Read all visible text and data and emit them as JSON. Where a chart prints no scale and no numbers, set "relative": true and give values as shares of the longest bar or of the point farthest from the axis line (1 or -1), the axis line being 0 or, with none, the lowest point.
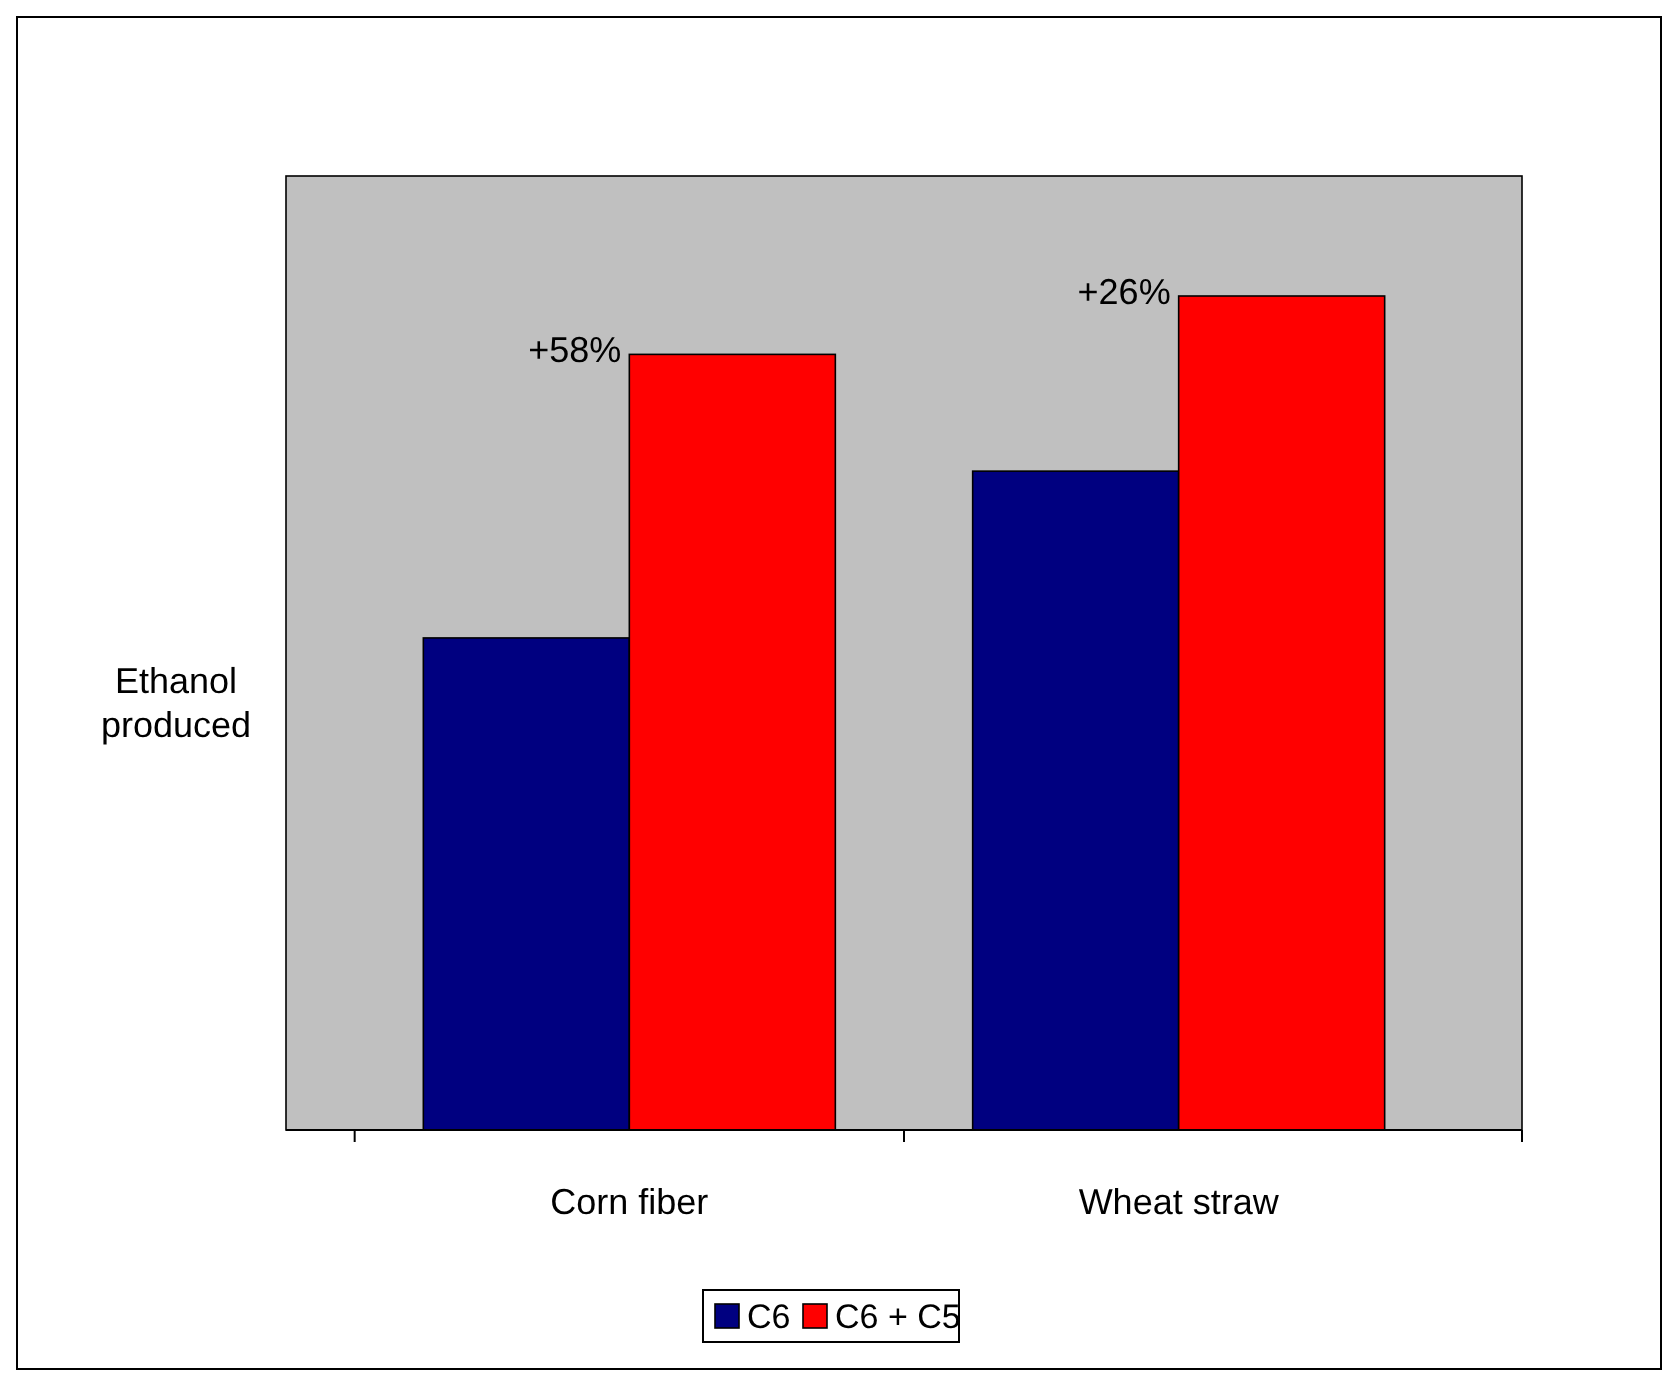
{
  "chart_data": {
    "type": "bar",
    "relative": true,
    "ylabel": "Ethanol produced",
    "categories": [
      "Corn fiber",
      "Wheat straw"
    ],
    "series": [
      {
        "name": "C6",
        "color": "#000080",
        "values": [
          0.59,
          0.79
        ]
      },
      {
        "name": "C6 + C5",
        "color": "#ff0000",
        "values": [
          0.93,
          1
        ]
      }
    ],
    "annotations": [
      {
        "text": "+58%",
        "x": "Corn fiber",
        "y": 0.93
      },
      {
        "text": "+26%",
        "x": "Wheat straw",
        "y": 1
      }
    ],
    "legend": "bottom"
  }
}
